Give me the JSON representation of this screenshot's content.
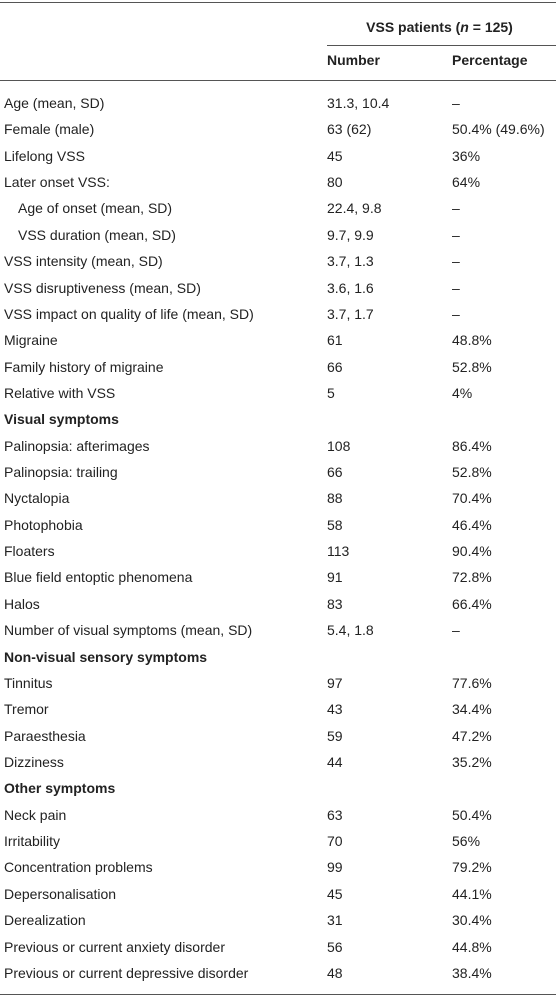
{
  "table": {
    "group_header": {
      "before": "VSS patients (",
      "italic": "n",
      "after": " = 125)"
    },
    "columns": [
      "Number",
      "Percentage"
    ],
    "rows": [
      {
        "cells": [
          "Age (mean, SD)",
          "31.3, 10.4",
          "–"
        ]
      },
      {
        "cells": [
          "Female (male)",
          "63 (62)",
          "50.4% (49.6%)"
        ]
      },
      {
        "cells": [
          "Lifelong VSS",
          "45",
          "36%"
        ]
      },
      {
        "cells": [
          "Later onset VSS:",
          "80",
          "64%"
        ]
      },
      {
        "cells": [
          "Age of onset (mean, SD)",
          "22.4, 9.8",
          "–"
        ],
        "indent": true
      },
      {
        "cells": [
          "VSS duration (mean, SD)",
          "9.7, 9.9",
          "–"
        ],
        "indent": true
      },
      {
        "cells": [
          "VSS intensity (mean, SD)",
          "3.7, 1.3",
          "–"
        ]
      },
      {
        "cells": [
          "VSS disruptiveness (mean, SD)",
          "3.6, 1.6",
          "–"
        ]
      },
      {
        "cells": [
          "VSS impact on quality of life (mean, SD)",
          "3.7, 1.7",
          "–"
        ]
      },
      {
        "cells": [
          "Migraine",
          "61",
          "48.8%"
        ]
      },
      {
        "cells": [
          "Family history of migraine",
          "66",
          "52.8%"
        ]
      },
      {
        "cells": [
          "Relative with VSS",
          "5",
          "4%"
        ]
      },
      {
        "heading": "Visual symptoms"
      },
      {
        "cells": [
          "Palinopsia: afterimages",
          "108",
          "86.4%"
        ]
      },
      {
        "cells": [
          "Palinopsia: trailing",
          "66",
          "52.8%"
        ]
      },
      {
        "cells": [
          "Nyctalopia",
          "88",
          "70.4%"
        ]
      },
      {
        "cells": [
          "Photophobia",
          "58",
          "46.4%"
        ]
      },
      {
        "cells": [
          "Floaters",
          "113",
          "90.4%"
        ]
      },
      {
        "cells": [
          "Blue field entoptic phenomena",
          "91",
          "72.8%"
        ]
      },
      {
        "cells": [
          "Halos",
          "83",
          "66.4%"
        ]
      },
      {
        "cells": [
          "Number of visual symptoms (mean, SD)",
          "5.4, 1.8",
          "–"
        ]
      },
      {
        "heading": "Non-visual sensory symptoms"
      },
      {
        "cells": [
          "Tinnitus",
          "97",
          "77.6%"
        ]
      },
      {
        "cells": [
          "Tremor",
          "43",
          "34.4%"
        ]
      },
      {
        "cells": [
          "Paraesthesia",
          "59",
          "47.2%"
        ]
      },
      {
        "cells": [
          "Dizziness",
          "44",
          "35.2%"
        ]
      },
      {
        "heading": "Other symptoms"
      },
      {
        "cells": [
          "Neck pain",
          "63",
          "50.4%"
        ]
      },
      {
        "cells": [
          "Irritability",
          "70",
          "56%"
        ]
      },
      {
        "cells": [
          "Concentration problems",
          "99",
          "79.2%"
        ]
      },
      {
        "cells": [
          "Depersonalisation",
          "45",
          "44.1%"
        ]
      },
      {
        "cells": [
          "Derealization",
          "31",
          "30.4%"
        ]
      },
      {
        "cells": [
          "Previous or current anxiety disorder",
          "56",
          "44.8%"
        ]
      },
      {
        "cells": [
          "Previous or current depressive disorder",
          "48",
          "38.4%"
        ]
      }
    ]
  }
}
